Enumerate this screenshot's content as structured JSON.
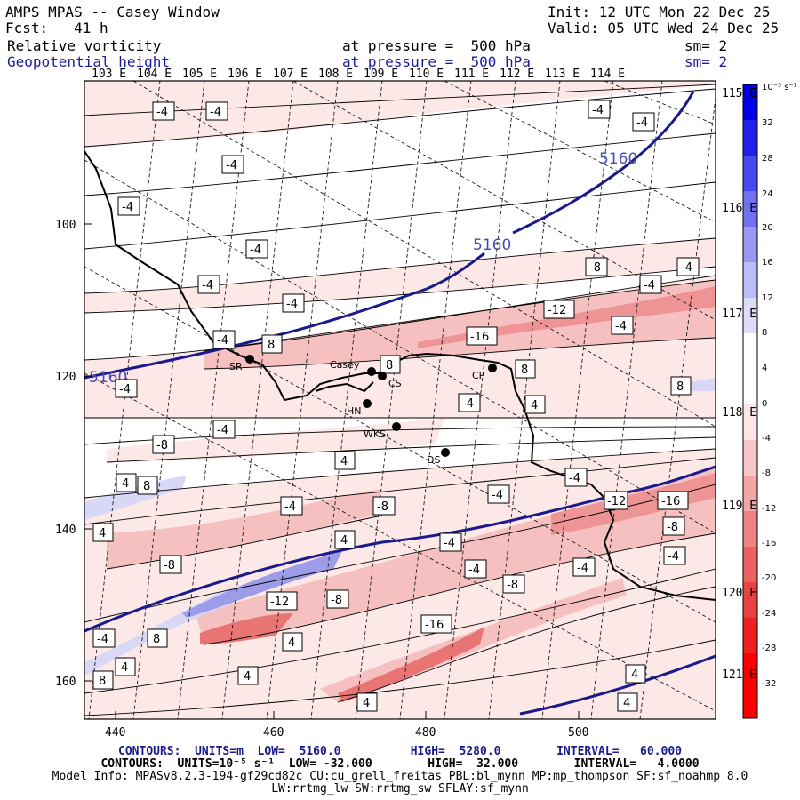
{
  "header": {
    "title": "AMPS MPAS -- Casey Window",
    "init": "Init: 12 UTC Mon 22 Dec 25",
    "forecast": "Fcst:   41 h",
    "valid": "Valid: 05 UTC Wed 24 Dec 25",
    "field1": "Relative vorticity",
    "field1_level": "at pressure =  500 hPa",
    "field1_sm": "sm= 2",
    "field2": "Geopotential height",
    "field2_level": "at pressure =  500 hPa",
    "field2_sm": "sm= 2"
  },
  "top_longitudes": [
    "103 E",
    "104 E",
    "105 E",
    "106 E",
    "107 E",
    "108 E",
    "109 E",
    "110 E",
    "111 E",
    "112 E",
    "113 E",
    "114 E"
  ],
  "right_longitudes": [
    "115 E",
    "116 E",
    "117 E",
    "118 E",
    "119 E",
    "120 E",
    "121 E"
  ],
  "x_axis_ticks": [
    "440",
    "460",
    "480",
    "500"
  ],
  "y_axis_ticks": [
    "100",
    "120",
    "140",
    "160"
  ],
  "stations": [
    {
      "name": "SR"
    },
    {
      "name": "Casey"
    },
    {
      "name": "CS"
    },
    {
      "name": "HN"
    },
    {
      "name": "CP"
    },
    {
      "name": "WKS"
    },
    {
      "name": "DS"
    }
  ],
  "height_contour_label": "5160",
  "vorticity_labels": [
    "-4",
    "-8",
    "-12",
    "-16",
    "4",
    "8"
  ],
  "colorbar": {
    "units": "10⁻⁵ s⁻¹",
    "ticks": [
      "32",
      "28",
      "24",
      "20",
      "16",
      "12",
      "8",
      "4",
      "0",
      "-4",
      "-8",
      "-12",
      "-16",
      "-20",
      "-24",
      "-28",
      "-32"
    ]
  },
  "footer": {
    "line1": "CONTOURS:  UNITS=m  LOW=  5160.0          HIGH=  5280.0        INTERVAL=   60.000",
    "line2": "CONTOURS:  UNITS=10⁻⁵ s⁻¹  LOW= -32.000        HIGH=  32.000        INTERVAL=   4.0000",
    "line3": "Model Info: MPASv8.2.3-194-gf29cd82c CU:cu_grell_freitas PBL:bl_mynn MP:mp_thompson SF:sf_noahmp 8.0",
    "line4": "LW:rrtmg_lw SW:rrtmg_sw SFLAY:sf_mynn"
  }
}
